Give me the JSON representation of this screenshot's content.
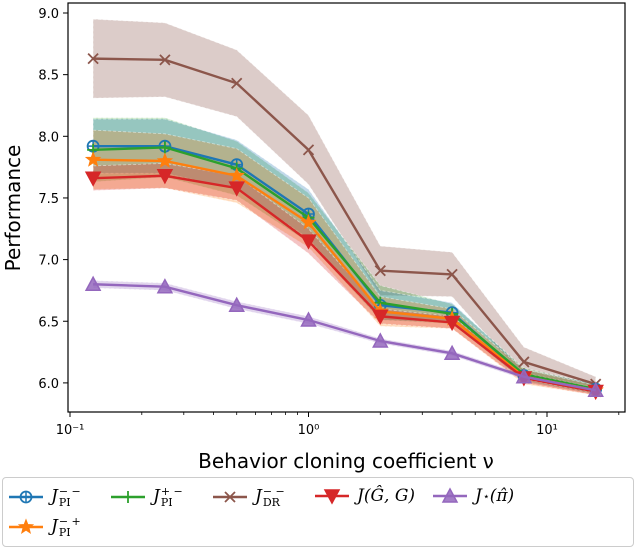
{
  "chart_data": {
    "type": "line",
    "title": "",
    "xlabel": "Behavior cloning coefficient ν",
    "ylabel": "Performance",
    "xscale": "log",
    "xlim": [
      0.1,
      20
    ],
    "ylim": [
      5.85,
      9.08
    ],
    "xticks": [
      {
        "v": 0.1,
        "label": "10⁻¹"
      },
      {
        "v": 1,
        "label": "10⁰"
      },
      {
        "v": 10,
        "label": "10¹"
      }
    ],
    "yticks": [
      "6.0",
      "6.5",
      "7.0",
      "7.5",
      "8.0",
      "8.5",
      "9.0"
    ],
    "grid": false,
    "legend_placement": "below",
    "x": [
      0.125,
      0.25,
      0.5,
      1,
      2,
      4,
      8,
      16
    ],
    "series": [
      {
        "name": "J_PI^{--}",
        "base": "J",
        "sub": "PI",
        "sup": "− −",
        "color": "#1f77b4",
        "marker": "circle-plus",
        "values": [
          7.92,
          7.92,
          7.77,
          7.37,
          6.63,
          6.57,
          6.06,
          5.95
        ],
        "band": [
          0.22,
          0.22,
          0.2,
          0.2,
          0.12,
          0.08,
          0.05,
          0.04
        ]
      },
      {
        "name": "J_PI^{+-}",
        "base": "J",
        "sub": "PI",
        "sup": "+ −",
        "color": "#2ca02c",
        "marker": "plus",
        "values": [
          7.89,
          7.91,
          7.74,
          7.34,
          6.65,
          6.56,
          6.07,
          5.95
        ],
        "band": [
          0.26,
          0.24,
          0.22,
          0.2,
          0.14,
          0.08,
          0.05,
          0.04
        ]
      },
      {
        "name": "J_DR^{--}",
        "base": "J",
        "sub": "DR",
        "sup": "− −",
        "color": "#8c564b",
        "marker": "x",
        "values": [
          8.63,
          8.62,
          8.43,
          7.89,
          6.91,
          6.88,
          6.17,
          5.99
        ],
        "band": [
          0.32,
          0.3,
          0.27,
          0.28,
          0.2,
          0.18,
          0.12,
          0.06
        ]
      },
      {
        "name": "J(Ĝ,G)",
        "base": "J(Ĝ, G)",
        "sub": "",
        "sup": "",
        "color": "#d62728",
        "marker": "triangle-down",
        "values": [
          7.66,
          7.68,
          7.58,
          7.15,
          6.54,
          6.49,
          6.04,
          5.93
        ],
        "band": [
          0.1,
          0.1,
          0.1,
          0.1,
          0.06,
          0.05,
          0.04,
          0.03
        ]
      },
      {
        "name": "J*(π̂)",
        "base": "J",
        "sub": "",
        "sup": "⋆",
        "tail": "(π̂)",
        "color": "#9467bd",
        "marker": "triangle-up",
        "values": [
          6.8,
          6.78,
          6.63,
          6.51,
          6.34,
          6.24,
          6.05,
          5.94
        ],
        "band": [
          0.03,
          0.03,
          0.03,
          0.03,
          0.02,
          0.02,
          0.02,
          0.02
        ]
      },
      {
        "name": "J_PI^{-+}",
        "base": "J",
        "sub": "PI",
        "sup": "− +",
        "color": "#ff7f0e",
        "marker": "star",
        "values": [
          7.81,
          7.8,
          7.68,
          7.3,
          6.58,
          6.52,
          6.05,
          5.94
        ],
        "band": [
          0.24,
          0.22,
          0.22,
          0.2,
          0.12,
          0.08,
          0.06,
          0.04
        ]
      }
    ]
  }
}
